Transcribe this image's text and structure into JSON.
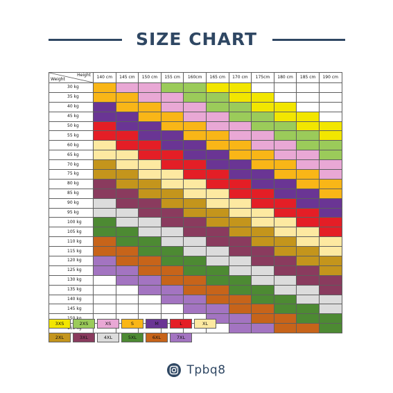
{
  "title": "SIZE CHART",
  "corner": {
    "height_label": "Height",
    "weight_label": "Weight"
  },
  "heights": [
    "140 cm",
    "145 cm",
    "150 cm",
    "155 cm",
    "160cm",
    "165 cm",
    "170 cm",
    "175cm",
    "180 cm",
    "185 cm",
    "190 cm"
  ],
  "weights": [
    "30 kg",
    "35 kg",
    "40 kg",
    "45 kg",
    "50 kg",
    "55 kg",
    "60 kg",
    "65 kg",
    "70 kg",
    "75 kg",
    "80 kg",
    "85 kg",
    "90 kg",
    "95 kg",
    "100 kg",
    "105 kg",
    "110 kg",
    "115 kg",
    "120 kg",
    "125 kg",
    "130 kg",
    "135 kg",
    "140 kg",
    "145 kg",
    "150 kg",
    "155 kg"
  ],
  "sizes": [
    {
      "code": "3XS",
      "label": "3XS",
      "color": "#f2e600"
    },
    {
      "code": "2XS",
      "label": "2XS",
      "color": "#9bcb5a"
    },
    {
      "code": "XS",
      "label": "XS",
      "color": "#e9a8d5"
    },
    {
      "code": "S",
      "label": "S",
      "color": "#f9b617"
    },
    {
      "code": "M",
      "label": "M",
      "color": "#6a3594"
    },
    {
      "code": "L",
      "label": "L",
      "color": "#e41e26"
    },
    {
      "code": "XL",
      "label": "XL",
      "color": "#fde9a1"
    },
    {
      "code": "2XL",
      "label": "2XL",
      "color": "#c4951c"
    },
    {
      "code": "3XL",
      "label": "3XL",
      "color": "#8a3b5e"
    },
    {
      "code": "4XL",
      "label": "4XL",
      "color": "#dcdcdc"
    },
    {
      "code": "5XL",
      "label": "5XL",
      "color": "#4d8a33"
    },
    {
      "code": "6XL",
      "label": "6XL",
      "color": "#c7641a"
    },
    {
      "code": "7XL",
      "label": "7XL",
      "color": "#a374c1"
    }
  ],
  "legend_rows": [
    [
      "3XS",
      "2XS",
      "XS",
      "S",
      "M",
      "L",
      "XL"
    ],
    [
      "2XL",
      "3XL",
      "4XL",
      "5XL",
      "6XL",
      "7XL"
    ]
  ],
  "grid": [
    [
      "S",
      "XS",
      "XS",
      "2XS",
      "2XS",
      "3XS",
      "3XS",
      "",
      "",
      "",
      ""
    ],
    [
      "S",
      "S",
      "XS",
      "XS",
      "2XS",
      "2XS",
      "3XS",
      "3XS",
      "",
      "",
      ""
    ],
    [
      "M",
      "S",
      "S",
      "XS",
      "XS",
      "2XS",
      "2XS",
      "3XS",
      "3XS",
      "",
      ""
    ],
    [
      "M",
      "M",
      "S",
      "S",
      "XS",
      "XS",
      "2XS",
      "2XS",
      "3XS",
      "3XS",
      ""
    ],
    [
      "L",
      "M",
      "M",
      "S",
      "S",
      "XS",
      "XS",
      "2XS",
      "2XS",
      "3XS",
      "3XS"
    ],
    [
      "L",
      "L",
      "M",
      "M",
      "S",
      "S",
      "XS",
      "XS",
      "2XS",
      "2XS",
      "3XS"
    ],
    [
      "XL",
      "L",
      "L",
      "M",
      "M",
      "S",
      "S",
      "XS",
      "XS",
      "2XS",
      "2XS"
    ],
    [
      "XL",
      "XL",
      "L",
      "L",
      "M",
      "M",
      "S",
      "S",
      "XS",
      "XS",
      "2XS"
    ],
    [
      "2XL",
      "XL",
      "XL",
      "L",
      "L",
      "M",
      "M",
      "S",
      "S",
      "XS",
      "XS"
    ],
    [
      "2XL",
      "2XL",
      "XL",
      "XL",
      "L",
      "L",
      "M",
      "M",
      "S",
      "S",
      "XS"
    ],
    [
      "3XL",
      "2XL",
      "2XL",
      "XL",
      "XL",
      "L",
      "L",
      "M",
      "M",
      "S",
      "S"
    ],
    [
      "3XL",
      "3XL",
      "2XL",
      "2XL",
      "XL",
      "XL",
      "L",
      "L",
      "M",
      "M",
      "S"
    ],
    [
      "4XL",
      "3XL",
      "3XL",
      "2XL",
      "2XL",
      "XL",
      "XL",
      "L",
      "L",
      "M",
      "M"
    ],
    [
      "4XL",
      "4XL",
      "3XL",
      "3XL",
      "2XL",
      "2XL",
      "XL",
      "XL",
      "L",
      "L",
      "M"
    ],
    [
      "5XL",
      "4XL",
      "4XL",
      "3XL",
      "3XL",
      "2XL",
      "2XL",
      "XL",
      "XL",
      "L",
      "L"
    ],
    [
      "5XL",
      "5XL",
      "4XL",
      "4XL",
      "3XL",
      "3XL",
      "2XL",
      "2XL",
      "XL",
      "XL",
      "L"
    ],
    [
      "6XL",
      "5XL",
      "5XL",
      "4XL",
      "4XL",
      "3XL",
      "3XL",
      "2XL",
      "2XL",
      "XL",
      "XL"
    ],
    [
      "6XL",
      "6XL",
      "5XL",
      "5XL",
      "4XL",
      "4XL",
      "3XL",
      "3XL",
      "2XL",
      "2XL",
      "XL"
    ],
    [
      "7XL",
      "6XL",
      "6XL",
      "5XL",
      "5XL",
      "4XL",
      "4XL",
      "3XL",
      "3XL",
      "2XL",
      "2XL"
    ],
    [
      "7XL",
      "7XL",
      "6XL",
      "6XL",
      "5XL",
      "5XL",
      "4XL",
      "4XL",
      "3XL",
      "3XL",
      "2XL"
    ],
    [
      "",
      "7XL",
      "7XL",
      "6XL",
      "6XL",
      "5XL",
      "5XL",
      "4XL",
      "4XL",
      "3XL",
      "3XL"
    ],
    [
      "",
      "",
      "7XL",
      "7XL",
      "6XL",
      "6XL",
      "5XL",
      "5XL",
      "4XL",
      "4XL",
      "3XL"
    ],
    [
      "",
      "",
      "",
      "7XL",
      "7XL",
      "6XL",
      "6XL",
      "5XL",
      "5XL",
      "4XL",
      "4XL"
    ],
    [
      "",
      "",
      "",
      "",
      "7XL",
      "7XL",
      "6XL",
      "6XL",
      "5XL",
      "5XL",
      "4XL"
    ],
    [
      "",
      "",
      "",
      "",
      "",
      "7XL",
      "7XL",
      "6XL",
      "6XL",
      "5XL",
      "5XL"
    ],
    [
      "",
      "",
      "",
      "",
      "",
      "",
      "7XL",
      "7XL",
      "6XL",
      "6XL",
      "5XL"
    ]
  ],
  "brand": {
    "icon": "instagram-icon",
    "handle": "Tpbq8"
  }
}
